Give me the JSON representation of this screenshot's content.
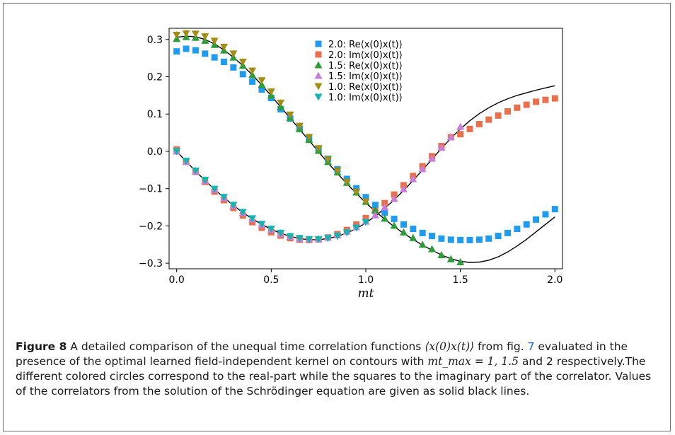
{
  "figure": {
    "label": "Figure 8",
    "caption_p1": " A detailed comparison of the unequal time correlation functions ",
    "caption_m1": "⟨x(0)x(t)⟩",
    "caption_p2": " from fig. ",
    "caption_ref": "7",
    "caption_p3": " evaluated in the presence of the optimal learned field-independent kernel on contours with ",
    "caption_m2": "mt_max = 1, 1.5",
    "caption_p4": " and 2 respectively.The different colored circles correspond to the real-part while the squares to the imaginary part of the correlator. Values of the correlators from the solution of the Schrödinger equation are given as solid black lines."
  },
  "chart_data": {
    "type": "scatter",
    "xlabel": "mt",
    "ylabel": "",
    "xlim": [
      -0.04,
      2.04
    ],
    "ylim": [
      -0.315,
      0.33
    ],
    "xticks": [
      0.0,
      0.5,
      1.0,
      1.5,
      2.0
    ],
    "xtick_labels": [
      "0.0",
      "0.5",
      "1.0",
      "1.5",
      "2.0"
    ],
    "yticks": [
      -0.3,
      -0.2,
      -0.1,
      0.0,
      0.1,
      0.2,
      0.3
    ],
    "ytick_labels": [
      "−0.3",
      "−0.2",
      "−0.1",
      "0.0",
      "0.1",
      "0.2",
      "0.3"
    ],
    "legend_position": "top-right",
    "series": [
      {
        "name": "2.0: Re⟨x(0)x(t)⟩",
        "marker": "square",
        "color": "#1f9bef",
        "x": [
          0.0,
          0.05,
          0.1,
          0.15,
          0.2,
          0.25,
          0.3,
          0.35,
          0.4,
          0.45,
          0.5,
          0.55,
          0.6,
          0.65,
          0.7,
          0.75,
          0.8,
          0.85,
          0.9,
          0.95,
          1.0,
          1.05,
          1.1,
          1.15,
          1.2,
          1.25,
          1.3,
          1.35,
          1.4,
          1.45,
          1.5,
          1.55,
          1.6,
          1.65,
          1.7,
          1.75,
          1.8,
          1.85,
          1.9,
          1.95,
          2.0
        ],
        "y": [
          0.268,
          0.275,
          0.271,
          0.262,
          0.252,
          0.24,
          0.225,
          0.207,
          0.187,
          0.166,
          0.143,
          0.113,
          0.088,
          0.061,
          0.034,
          0.007,
          -0.02,
          -0.048,
          -0.074,
          -0.099,
          -0.123,
          -0.144,
          -0.164,
          -0.181,
          -0.196,
          -0.208,
          -0.219,
          -0.227,
          -0.234,
          -0.237,
          -0.238,
          -0.238,
          -0.237,
          -0.234,
          -0.227,
          -0.219,
          -0.208,
          -0.196,
          -0.183,
          -0.169,
          -0.155
        ]
      },
      {
        "name": "2.0: Im⟨x(0)x(t)⟩",
        "marker": "square",
        "color": "#e8704d",
        "x": [
          0.0,
          0.05,
          0.1,
          0.15,
          0.2,
          0.25,
          0.3,
          0.35,
          0.4,
          0.45,
          0.5,
          0.55,
          0.6,
          0.65,
          0.7,
          0.75,
          0.8,
          0.85,
          0.9,
          0.95,
          1.0,
          1.05,
          1.1,
          1.15,
          1.2,
          1.25,
          1.3,
          1.35,
          1.4,
          1.45,
          1.5,
          1.55,
          1.6,
          1.65,
          1.7,
          1.75,
          1.8,
          1.85,
          1.9,
          1.95,
          2.0
        ],
        "y": [
          0.005,
          -0.028,
          -0.055,
          -0.082,
          -0.108,
          -0.131,
          -0.152,
          -0.172,
          -0.19,
          -0.205,
          -0.217,
          -0.226,
          -0.233,
          -0.237,
          -0.238,
          -0.236,
          -0.231,
          -0.222,
          -0.211,
          -0.196,
          -0.179,
          -0.16,
          -0.139,
          -0.116,
          -0.091,
          -0.066,
          -0.04,
          -0.013,
          0.014,
          0.038,
          0.046,
          0.06,
          0.073,
          0.085,
          0.096,
          0.107,
          0.117,
          0.125,
          0.133,
          0.138,
          0.142
        ]
      },
      {
        "name": "1.5: Re⟨x(0)x(t)⟩",
        "marker": "triangle-up",
        "color": "#2e9c3a",
        "x": [
          0.0,
          0.05,
          0.1,
          0.15,
          0.2,
          0.25,
          0.3,
          0.35,
          0.4,
          0.45,
          0.5,
          0.55,
          0.6,
          0.65,
          0.7,
          0.75,
          0.8,
          0.85,
          0.9,
          0.95,
          1.0,
          1.05,
          1.1,
          1.15,
          1.2,
          1.25,
          1.3,
          1.35,
          1.4,
          1.45,
          1.5
        ],
        "y": [
          0.302,
          0.307,
          0.305,
          0.297,
          0.286,
          0.271,
          0.252,
          0.23,
          0.205,
          0.179,
          0.15,
          0.12,
          0.09,
          0.06,
          0.031,
          0.002,
          -0.028,
          -0.056,
          -0.084,
          -0.11,
          -0.135,
          -0.158,
          -0.18,
          -0.199,
          -0.217,
          -0.232,
          -0.25,
          -0.262,
          -0.278,
          -0.289,
          -0.297
        ]
      },
      {
        "name": "1.5: Im⟨x(0)x(t)⟩",
        "marker": "triangle-up",
        "color": "#c77fd9",
        "x": [
          0.0,
          0.05,
          0.1,
          0.15,
          0.2,
          0.25,
          0.3,
          0.35,
          0.4,
          0.45,
          0.5,
          0.55,
          0.6,
          0.65,
          0.7,
          0.75,
          0.8,
          0.85,
          0.9,
          0.95,
          1.0,
          1.05,
          1.1,
          1.15,
          1.2,
          1.25,
          1.3,
          1.35,
          1.4,
          1.45,
          1.5
        ],
        "y": [
          0.0,
          -0.028,
          -0.054,
          -0.079,
          -0.103,
          -0.125,
          -0.146,
          -0.165,
          -0.182,
          -0.197,
          -0.21,
          -0.221,
          -0.229,
          -0.234,
          -0.236,
          -0.235,
          -0.231,
          -0.225,
          -0.215,
          -0.203,
          -0.188,
          -0.171,
          -0.15,
          -0.127,
          -0.101,
          -0.074,
          -0.047,
          -0.019,
          0.01,
          0.038,
          0.066
        ]
      },
      {
        "name": "1.0: Re⟨x(0)x(t)⟩",
        "marker": "triangle-down",
        "color": "#a38d14",
        "x": [
          0.0,
          0.05,
          0.1,
          0.15,
          0.2,
          0.25,
          0.3,
          0.35,
          0.4,
          0.45,
          0.5,
          0.55,
          0.6,
          0.65,
          0.7,
          0.75,
          0.8,
          0.85,
          0.9,
          0.95,
          1.0
        ],
        "y": [
          0.312,
          0.316,
          0.315,
          0.308,
          0.296,
          0.28,
          0.262,
          0.24,
          0.216,
          0.19,
          0.16,
          0.13,
          0.098,
          0.068,
          0.038,
          0.008,
          -0.022,
          -0.052,
          -0.082,
          -0.109,
          -0.135
        ]
      },
      {
        "name": "1.0: Im⟨x(0)x(t)⟩",
        "marker": "triangle-down",
        "color": "#16b3b3",
        "x": [
          0.0,
          0.05,
          0.1,
          0.15,
          0.2,
          0.25,
          0.3,
          0.35,
          0.4,
          0.45,
          0.5,
          0.55,
          0.6,
          0.65,
          0.7,
          0.75,
          0.8,
          0.85,
          0.9,
          0.95,
          1.0
        ],
        "y": [
          0.0,
          -0.026,
          -0.052,
          -0.077,
          -0.101,
          -0.123,
          -0.144,
          -0.163,
          -0.18,
          -0.195,
          -0.208,
          -0.219,
          -0.228,
          -0.233,
          -0.236,
          -0.236,
          -0.233,
          -0.227,
          -0.218,
          -0.205,
          -0.19
        ]
      }
    ],
    "reference_curves": {
      "color": "#000000",
      "re_x": [
        0.0,
        0.05,
        0.1,
        0.15,
        0.2,
        0.25,
        0.3,
        0.35,
        0.4,
        0.45,
        0.5,
        0.55,
        0.6,
        0.65,
        0.7,
        0.75,
        0.8,
        0.85,
        0.9,
        0.95,
        1.0,
        1.05,
        1.1,
        1.15,
        1.2,
        1.25,
        1.3,
        1.35,
        1.4,
        1.45,
        1.5,
        1.55,
        1.6,
        1.65,
        1.7,
        1.75,
        1.8,
        1.85,
        1.9,
        1.95,
        2.0
      ],
      "re_y": [
        0.306,
        0.309,
        0.307,
        0.3,
        0.288,
        0.272,
        0.252,
        0.23,
        0.205,
        0.178,
        0.149,
        0.119,
        0.089,
        0.059,
        0.029,
        -0.001,
        -0.031,
        -0.059,
        -0.087,
        -0.113,
        -0.138,
        -0.161,
        -0.182,
        -0.202,
        -0.22,
        -0.236,
        -0.252,
        -0.265,
        -0.278,
        -0.288,
        -0.295,
        -0.298,
        -0.297,
        -0.292,
        -0.283,
        -0.27,
        -0.254,
        -0.236,
        -0.216,
        -0.196,
        -0.176
      ],
      "im_x": [
        0.0,
        0.05,
        0.1,
        0.15,
        0.2,
        0.25,
        0.3,
        0.35,
        0.4,
        0.45,
        0.5,
        0.55,
        0.6,
        0.65,
        0.7,
        0.75,
        0.8,
        0.85,
        0.9,
        0.95,
        1.0,
        1.05,
        1.1,
        1.15,
        1.2,
        1.25,
        1.3,
        1.35,
        1.4,
        1.45,
        1.5,
        1.55,
        1.6,
        1.65,
        1.7,
        1.75,
        1.8,
        1.85,
        1.9,
        1.95,
        2.0
      ],
      "im_y": [
        0.0,
        -0.027,
        -0.053,
        -0.078,
        -0.102,
        -0.124,
        -0.145,
        -0.164,
        -0.181,
        -0.196,
        -0.209,
        -0.22,
        -0.228,
        -0.234,
        -0.237,
        -0.237,
        -0.234,
        -0.228,
        -0.219,
        -0.207,
        -0.192,
        -0.174,
        -0.153,
        -0.13,
        -0.105,
        -0.078,
        -0.05,
        -0.021,
        0.008,
        0.035,
        0.06,
        0.082,
        0.101,
        0.117,
        0.13,
        0.141,
        0.15,
        0.157,
        0.164,
        0.17,
        0.176
      ]
    }
  }
}
